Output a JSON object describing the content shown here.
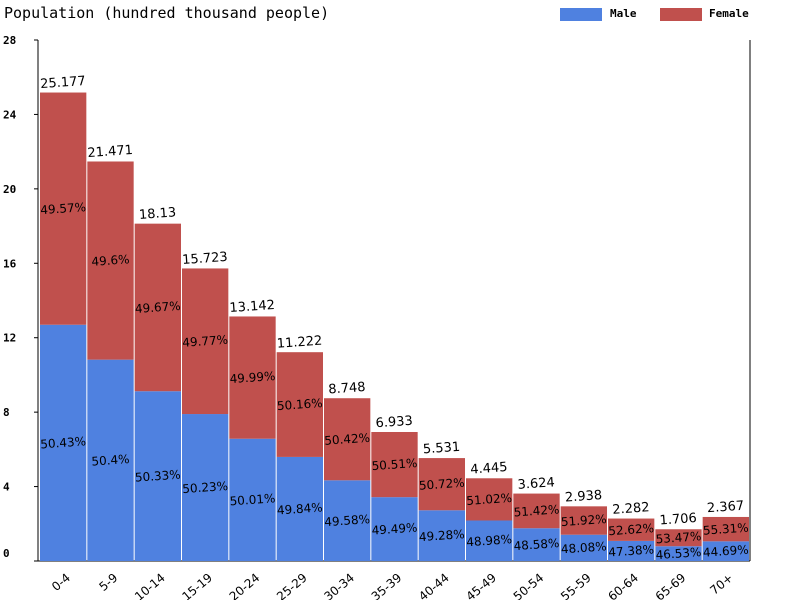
{
  "chart_data": {
    "type": "bar",
    "stacked": true,
    "title": "Population (hundred thousand people)",
    "categories": [
      "0-4",
      "5-9",
      "10-14",
      "15-19",
      "20-24",
      "25-29",
      "30-34",
      "35-39",
      "40-44",
      "45-49",
      "50-54",
      "55-59",
      "60-64",
      "65-69",
      "70+"
    ],
    "totals": [
      "25.177",
      "21.471",
      "18.13",
      "15.723",
      "13.142",
      "11.222",
      "8.748",
      "6.933",
      "5.531",
      "4.445",
      "3.624",
      "2.938",
      "2.282",
      "1.706",
      "2.367"
    ],
    "series": [
      {
        "name": "Male",
        "color": "#4f81e0",
        "percent_labels": [
          "50.43%",
          "50.4%",
          "50.33%",
          "50.23%",
          "50.01%",
          "49.84%",
          "49.58%",
          "49.49%",
          "49.28%",
          "48.98%",
          "48.58%",
          "48.08%",
          "47.38%",
          "46.53%",
          "44.69%"
        ],
        "values": [
          12.697,
          10.821,
          9.125,
          7.898,
          6.572,
          5.593,
          4.337,
          3.431,
          2.726,
          2.177,
          1.761,
          1.413,
          1.081,
          0.794,
          1.058
        ]
      },
      {
        "name": "Female",
        "color": "#c0504d",
        "percent_labels": [
          "49.57%",
          "49.6%",
          "49.67%",
          "49.77%",
          "49.99%",
          "50.16%",
          "50.42%",
          "50.51%",
          "50.72%",
          "51.02%",
          "51.42%",
          "51.92%",
          "52.62%",
          "53.47%",
          "55.31%"
        ],
        "values": [
          12.48,
          10.65,
          9.005,
          7.825,
          6.57,
          5.629,
          4.411,
          3.502,
          2.805,
          2.268,
          1.863,
          1.525,
          1.201,
          0.912,
          1.309
        ]
      }
    ],
    "yticks": [
      "0",
      "4",
      "8",
      "12",
      "16",
      "20",
      "24",
      "28"
    ],
    "ylim": [
      0,
      28
    ],
    "legend_position": "top-right",
    "grid": false
  }
}
